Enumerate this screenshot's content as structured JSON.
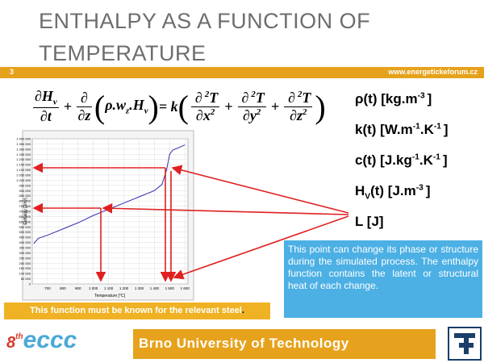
{
  "header": {
    "title": "ENTHALPY AS A FUNCTION OF TEMPERATURE",
    "slide_number": "3",
    "website": "www.energetickeforum.cz"
  },
  "equation": [
    {
      "num": [
        {
          "t": "∂H"
        },
        {
          "sub": "v"
        }
      ],
      "den": [
        {
          "t": "∂t"
        }
      ]
    },
    {
      "parts": [
        {
          "t": "+"
        }
      ]
    },
    {
      "num": [
        {
          "t": "∂"
        }
      ],
      "den": [
        {
          "t": "∂z"
        }
      ]
    },
    {
      "parts": [
        {
          "t": "("
        }
      ]
    },
    {
      "parts": [
        {
          "t": "ρ.w"
        },
        {
          "sub": "z"
        },
        {
          "t": ".H"
        },
        {
          "sub": "v"
        }
      ]
    },
    {
      "parts": [
        {
          "t": ")"
        }
      ]
    },
    {
      "parts": [
        {
          "t": "= k"
        }
      ]
    },
    {
      "parts": [
        {
          "t": "("
        }
      ]
    },
    {
      "num": [
        {
          "t": "∂"
        },
        {
          "sup": "2"
        },
        {
          "t": "T"
        }
      ],
      "den": [
        {
          "t": "∂x"
        },
        {
          "sup": "2"
        }
      ]
    },
    {
      "parts": [
        {
          "t": "+"
        }
      ]
    },
    {
      "num": [
        {
          "t": "∂"
        },
        {
          "sup": "2"
        },
        {
          "t": "T"
        }
      ],
      "den": [
        {
          "t": "∂y"
        },
        {
          "sup": "2"
        }
      ]
    },
    {
      "parts": [
        {
          "t": "+"
        }
      ]
    },
    {
      "num": [
        {
          "t": "∂"
        },
        {
          "sup": "2"
        },
        {
          "t": "T"
        }
      ],
      "den": [
        {
          "t": "∂z"
        },
        {
          "sup": "2"
        }
      ]
    },
    {
      "parts": [
        {
          "t": ")"
        }
      ]
    }
  ],
  "properties": [
    [
      {
        "t": "ρ(t) [kg.m"
      },
      {
        "sup": "-3"
      },
      {
        "t": "]"
      }
    ],
    [
      {
        "t": "k(t) [W.m"
      },
      {
        "sup": "-1"
      },
      {
        "t": ".K"
      },
      {
        "sup": "-1"
      },
      {
        "t": "]"
      }
    ],
    [
      {
        "t": "c(t) [J.kg"
      },
      {
        "sup": "-1"
      },
      {
        "t": ".K"
      },
      {
        "sup": "-1"
      },
      {
        "t": "]"
      }
    ],
    [
      {
        "t": "H"
      },
      {
        "sub": "V"
      },
      {
        "t": "(t) [J.m"
      },
      {
        "sup": "-3"
      },
      {
        "t": "]"
      }
    ],
    [
      {
        "t": "L     [J]"
      }
    ]
  ],
  "note_box": "This point can change its phase or structure during the simulated process. The enthalpy function contains the latent or structural heat of each change.",
  "caption": "This function must be known for the relevant steel",
  "caption_end": ".",
  "footer": {
    "logo_number": "8",
    "logo_suffix": "th",
    "logo_text": "eccc",
    "institution": "Brno University of Technology"
  },
  "chart_data": {
    "type": "line",
    "x_label": "Temperature [°C]",
    "y_label": "Enthalpy [J/m³]",
    "x": [
      610,
      640,
      700,
      800,
      900,
      1000,
      1100,
      1200,
      1300,
      1400,
      1450,
      1480,
      1500,
      1520,
      1600
    ],
    "series": [
      {
        "name": "Enthalpy",
        "color": "#3030b0",
        "values": [
          390000,
          440000,
          470000,
          530000,
          590000,
          660000,
          720000,
          780000,
          840000,
          900000,
          960000,
          1100000,
          1250000,
          1290000,
          1340000
        ]
      }
    ],
    "xlim": [
      600,
      1620
    ],
    "ylim": [
      0,
      1400000
    ],
    "grid": true,
    "xticks": [
      700,
      800,
      900,
      {
        "value": 1000,
        "label": "1 000"
      },
      {
        "value": 1100,
        "label": "1 100"
      },
      {
        "value": 1200,
        "label": "1 200"
      },
      {
        "value": 1300,
        "label": "1 300"
      },
      {
        "value": 1400,
        "label": "1 400"
      },
      {
        "value": 1500,
        "label": "1 500"
      },
      {
        "value": 1600,
        "label": "1 600"
      }
    ],
    "yticks": [
      0,
      {
        "value": 50000,
        "label": "50 000"
      },
      {
        "value": 100000,
        "label": "100 000"
      },
      {
        "value": 150000,
        "label": "150 000"
      },
      {
        "value": 200000,
        "label": "200 000"
      },
      {
        "value": 250000,
        "label": "250 000"
      },
      {
        "value": 300000,
        "label": "300 000"
      },
      {
        "value": 350000,
        "label": "350 000"
      },
      {
        "value": 400000,
        "label": "400 000"
      },
      {
        "value": 450000,
        "label": "450 000"
      },
      {
        "value": 500000,
        "label": "500 000"
      },
      {
        "value": 550000,
        "label": "550 000"
      },
      {
        "value": 600000,
        "label": "600 000"
      },
      {
        "value": 650000,
        "label": "650 000"
      },
      {
        "value": 700000,
        "label": "700 000"
      },
      {
        "value": 750000,
        "label": "750 000"
      },
      {
        "value": 800000,
        "label": "800 000"
      },
      {
        "value": 850000,
        "label": "850 000"
      },
      {
        "value": 900000,
        "label": "900 000"
      },
      {
        "value": 950000,
        "label": "950 000"
      },
      {
        "value": 1000000,
        "label": "1 000 000"
      },
      {
        "value": 1050000,
        "label": "1 050 000"
      },
      {
        "value": 1100000,
        "label": "1 100 000"
      },
      {
        "value": 1150000,
        "label": "1 150 000"
      },
      {
        "value": 1200000,
        "label": "1 200 000"
      },
      {
        "value": 1250000,
        "label": "1 250 000"
      },
      {
        "value": 1300000,
        "label": "1 300 000"
      },
      {
        "value": 1350000,
        "label": "1 350 000"
      },
      {
        "value": 1400000,
        "label": "1 400 000"
      }
    ]
  }
}
